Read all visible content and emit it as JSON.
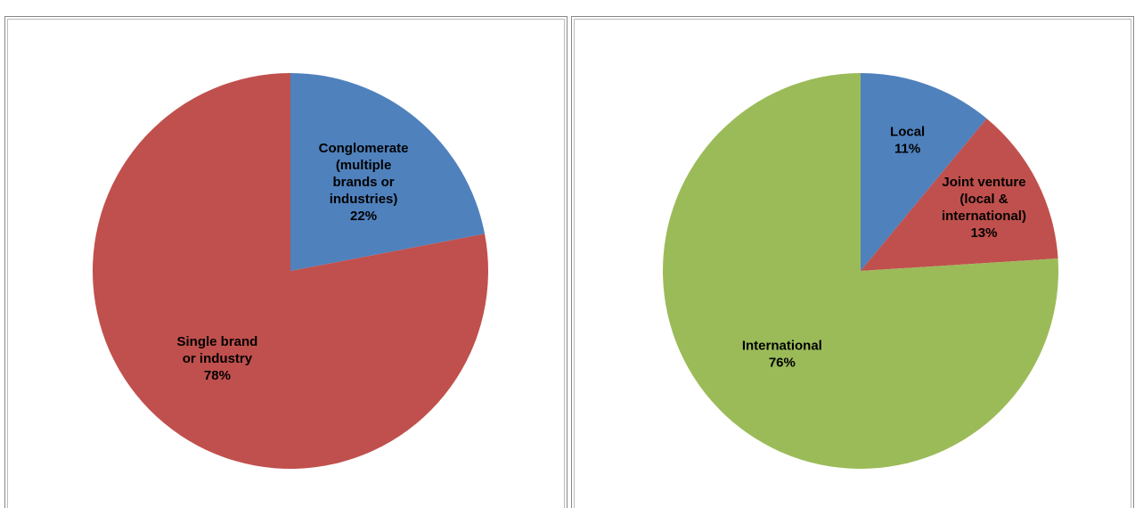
{
  "chart_data": [
    {
      "type": "pie",
      "categories": [
        "Conglomerate (multiple brands or industries)",
        "Single brand or industry"
      ],
      "values": [
        22,
        78
      ],
      "value_labels": [
        "22%",
        "78%"
      ],
      "colors": [
        "#4f81bd",
        "#c0504d"
      ]
    },
    {
      "type": "pie",
      "categories": [
        "Local",
        "Joint venture (local & international)",
        "International"
      ],
      "values": [
        11,
        13,
        76
      ],
      "value_labels": [
        "11%",
        "13%",
        "76%"
      ],
      "colors": [
        "#4f81bd",
        "#c0504d",
        "#9bbb59"
      ]
    }
  ]
}
